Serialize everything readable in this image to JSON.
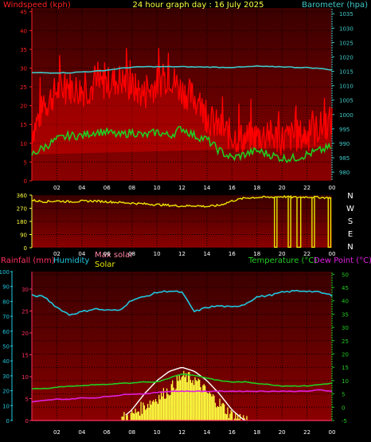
{
  "header": {
    "left": "Windspeed (kph)",
    "center": "24 hour graph day : 16 July 2025",
    "right": "Barometer (hpa)"
  },
  "compass": [
    "N",
    "W",
    "S",
    "E",
    "N"
  ],
  "legend2": {
    "rainfall": "Rainfall (mm)",
    "humidity": "Humidity",
    "max_solar": "Max solar",
    "solar": "Solar",
    "temperature": "Temperature (°C)",
    "dewpoint": "Dew Point (°C)"
  },
  "colors": {
    "wind": "#ff0000",
    "gust": "#ff0000",
    "avg_wind": "#22cc22",
    "barometer": "#40c8c8",
    "direction": "#e8e800",
    "temperature": "#22cc22",
    "dewpoint": "#e020e0",
    "humidity": "#20c8e0",
    "solar": "#ffff40",
    "max_solar": "#ffffff",
    "rainfall": "#ff3060"
  },
  "chart_data": [
    {
      "type": "line",
      "title": "24 hour graph day : 16 July 2025",
      "x_ticks": [
        "02",
        "04",
        "06",
        "08",
        "10",
        "12",
        "14",
        "16",
        "18",
        "20",
        "22",
        "00"
      ],
      "y_left_ticks": [
        "0",
        "5",
        "10",
        "15",
        "20",
        "25",
        "30",
        "35",
        "40",
        "45"
      ],
      "y_right_ticks": [
        "980",
        "985",
        "990",
        "995",
        "1000",
        "1005",
        "1010",
        "1015",
        "1020",
        "1025",
        "1030",
        "1035"
      ],
      "ylim_left": [
        0,
        46
      ],
      "ylim_right": [
        977,
        1037
      ],
      "x_hours": [
        0,
        1,
        2,
        3,
        4,
        5,
        6,
        7,
        8,
        9,
        10,
        11,
        12,
        13,
        14,
        15,
        16,
        17,
        18,
        19,
        20,
        21,
        22,
        23,
        24
      ],
      "series": [
        {
          "name": "Windspeed (kph)",
          "role": "gust",
          "axis": "left",
          "values": [
            13,
            20,
            24,
            25,
            24,
            25,
            26,
            27,
            25,
            23,
            26,
            28,
            24,
            22,
            17,
            14,
            12,
            11,
            12,
            12,
            11,
            12,
            12,
            14,
            16
          ]
        },
        {
          "name": "Windspeed (kph)",
          "role": "avg",
          "axis": "left",
          "values": [
            7,
            9,
            11,
            12,
            12,
            13,
            13,
            12,
            13,
            12,
            13,
            12,
            14,
            12,
            11,
            8,
            6,
            7,
            8,
            7,
            6,
            6,
            7,
            8,
            9
          ]
        },
        {
          "name": "Barometer (hpa)",
          "axis": "right",
          "values": [
            1014.5,
            1014.5,
            1014.5,
            1014.5,
            1014.8,
            1015,
            1015.4,
            1016,
            1016.4,
            1016.6,
            1016.6,
            1016.6,
            1016.6,
            1016.5,
            1016.5,
            1016.4,
            1016.4,
            1016.5,
            1016.8,
            1016.6,
            1016.6,
            1016.4,
            1016.3,
            1016,
            1015.5
          ]
        }
      ]
    },
    {
      "type": "scatter",
      "x_ticks": [
        "02",
        "04",
        "06",
        "08",
        "10",
        "12",
        "14",
        "16",
        "18",
        "20",
        "22",
        "00"
      ],
      "y_ticks": [
        "0",
        "90",
        "180",
        "270",
        "360"
      ],
      "ylim": [
        0,
        360
      ],
      "x_hours": [
        0,
        1,
        2,
        3,
        4,
        5,
        6,
        7,
        8,
        9,
        10,
        11,
        12,
        13,
        14,
        15,
        16,
        17,
        18,
        19,
        20,
        21,
        22,
        23,
        24
      ],
      "series": [
        {
          "name": "Wind direction",
          "values": [
            325,
            315,
            320,
            315,
            318,
            320,
            315,
            310,
            305,
            300,
            295,
            290,
            285,
            288,
            282,
            290,
            320,
            340,
            345,
            345,
            350,
            345,
            348,
            345,
            340
          ]
        }
      ]
    },
    {
      "type": "line",
      "x_ticks": [
        "02",
        "04",
        "06",
        "08",
        "10",
        "12",
        "14",
        "16",
        "18",
        "20",
        "22",
        "00"
      ],
      "y_humidity_ticks": [
        "0",
        "10",
        "20",
        "30",
        "40",
        "50",
        "60",
        "70",
        "80",
        "90",
        "100"
      ],
      "y_rain_ticks": [
        "0",
        "5",
        "10",
        "15",
        "20",
        "25",
        "30"
      ],
      "y_temp_ticks": [
        "-5",
        "0",
        "5",
        "10",
        "15",
        "20",
        "25",
        "30",
        "35",
        "40",
        "45",
        "50"
      ],
      "x_hours": [
        0,
        1,
        2,
        3,
        4,
        5,
        6,
        7,
        8,
        9,
        10,
        11,
        12,
        13,
        14,
        15,
        16,
        17,
        18,
        19,
        20,
        21,
        22,
        23,
        24
      ],
      "series": [
        {
          "name": "Humidity",
          "axis": "humidity",
          "values": [
            84,
            83,
            76,
            71,
            73,
            75,
            74,
            74,
            81,
            83,
            86,
            87,
            86,
            73,
            76,
            77,
            76,
            78,
            83,
            84,
            86,
            87,
            87,
            86,
            84
          ]
        },
        {
          "name": "Temperature (°C)",
          "axis": "temp",
          "values": [
            7,
            7,
            7.5,
            8,
            8,
            8.5,
            8.5,
            9,
            9,
            9.5,
            9.5,
            11,
            12.5,
            12,
            11,
            10,
            9.5,
            9.5,
            9,
            8.5,
            8,
            8,
            8,
            8.5,
            9
          ]
        },
        {
          "name": "Dew Point (°C)",
          "axis": "temp",
          "values": [
            2,
            2.5,
            3,
            3,
            3.5,
            3.5,
            4,
            4.5,
            5,
            5,
            5.5,
            6,
            6,
            6,
            6,
            6,
            6,
            6,
            6,
            6,
            6,
            6,
            6,
            6.5,
            6
          ]
        },
        {
          "name": "Max solar",
          "axis": "temp",
          "values": [
            -5,
            -5,
            -5,
            -5,
            -5,
            -5,
            -5,
            -5,
            -1,
            5,
            10,
            13.5,
            15,
            13.5,
            10,
            5,
            -1,
            -5,
            -5,
            -5,
            -5,
            -5,
            -5,
            -5,
            -5
          ]
        },
        {
          "name": "Solar",
          "axis": "temp",
          "values": [
            -5,
            -5,
            -5,
            -5,
            -5,
            -5,
            -5,
            -5,
            -3.5,
            0,
            3,
            6,
            11,
            10,
            5,
            1,
            -3.5,
            -5,
            -5,
            -5,
            -5,
            -5,
            -5,
            -5,
            -5
          ]
        },
        {
          "name": "Rainfall (mm)",
          "axis": "rain",
          "values": [
            0,
            0,
            0,
            0,
            0,
            0,
            0,
            0,
            0,
            0,
            0,
            0,
            0,
            0,
            0,
            0,
            0,
            0,
            0,
            0,
            0,
            0,
            0,
            0,
            0
          ]
        }
      ]
    }
  ]
}
